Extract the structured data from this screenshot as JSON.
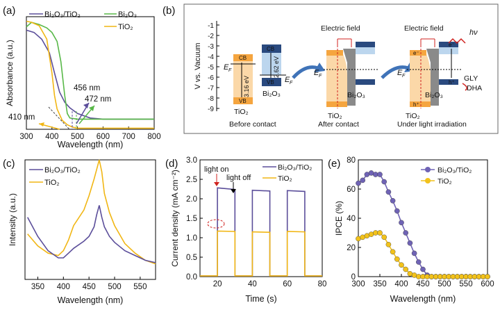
{
  "colors": {
    "purple": "#5b4e9a",
    "green": "#58b848",
    "yellow": "#f1b614",
    "orange": "#f5a53f",
    "orangeLight": "#fbd8a8",
    "navy": "#2a4a7f",
    "blueLight": "#bcd6ee",
    "gray": "#7a7a7a",
    "red": "#d0221f",
    "arrow": "#3f73b8"
  },
  "panel_labels": {
    "a": "(a)",
    "b": "(b)",
    "c": "(c)",
    "d": "(d)",
    "e": "(e)"
  },
  "chart_data": [
    {
      "id": "a",
      "type": "line",
      "title": "",
      "xlabel": "Wavelength (nm)",
      "ylabel": "Absorbance (a.u.)",
      "xlim": [
        300,
        800
      ],
      "xticks": [
        300,
        400,
        500,
        600,
        700,
        800
      ],
      "ylim": [
        0,
        1
      ],
      "legend": [
        "Bi₂O₃/TiO₂",
        "Bi₂O₃",
        "TiO₂"
      ],
      "series": [
        {
          "name": "Bi₂O₃/TiO₂",
          "color": "#5b4e9a",
          "x": [
            300,
            330,
            360,
            390,
            410,
            430,
            450,
            470,
            500,
            550,
            600,
            650,
            700,
            750,
            800
          ],
          "y": [
            0.88,
            0.86,
            0.8,
            0.68,
            0.5,
            0.33,
            0.24,
            0.19,
            0.14,
            0.1,
            0.09,
            0.09,
            0.09,
            0.09,
            0.09
          ]
        },
        {
          "name": "Bi₂O₃",
          "color": "#58b848",
          "x": [
            300,
            320,
            350,
            380,
            400,
            420,
            435,
            450,
            460,
            470,
            500,
            600,
            700,
            800
          ],
          "y": [
            0.91,
            0.95,
            0.93,
            0.9,
            0.86,
            0.78,
            0.6,
            0.3,
            0.14,
            0.1,
            0.09,
            0.09,
            0.09,
            0.09
          ]
        },
        {
          "name": "TiO₂",
          "color": "#f1b614",
          "x": [
            300,
            320,
            350,
            380,
            400,
            410,
            420,
            440,
            460,
            480,
            500,
            600,
            700,
            800
          ],
          "y": [
            0.96,
            0.95,
            0.92,
            0.8,
            0.5,
            0.3,
            0.18,
            0.08,
            0.04,
            0.02,
            0.01,
            0.01,
            0.01,
            0.01
          ]
        }
      ],
      "annotations": [
        "410 nm",
        "456 nm",
        "472 nm"
      ]
    },
    {
      "id": "c",
      "type": "line",
      "title": "",
      "xlabel": "Wavelength (nm)",
      "ylabel": "Intensity (a.u.)",
      "xlim": [
        325,
        580
      ],
      "xticks": [
        350,
        400,
        450,
        500,
        550
      ],
      "ylim": [
        0,
        1
      ],
      "legend": [
        "Bi₂O₃/TiO₂",
        "TiO₂"
      ],
      "series": [
        {
          "name": "TiO₂",
          "color": "#f1b614",
          "x": [
            330,
            350,
            370,
            390,
            400,
            410,
            420,
            440,
            450,
            460,
            465,
            470,
            475,
            480,
            490,
            500,
            520,
            540,
            560,
            580
          ],
          "y": [
            0.38,
            0.28,
            0.22,
            0.2,
            0.24,
            0.33,
            0.45,
            0.58,
            0.7,
            0.84,
            0.92,
            1.0,
            0.9,
            0.72,
            0.56,
            0.45,
            0.3,
            0.22,
            0.16,
            0.13
          ]
        },
        {
          "name": "Bi₂O₃/TiO₂",
          "color": "#5b4e9a",
          "x": [
            330,
            350,
            370,
            390,
            400,
            410,
            420,
            440,
            450,
            460,
            465,
            470,
            475,
            480,
            490,
            500,
            520,
            540,
            560,
            580
          ],
          "y": [
            0.52,
            0.36,
            0.24,
            0.18,
            0.18,
            0.22,
            0.26,
            0.32,
            0.36,
            0.44,
            0.54,
            0.62,
            0.52,
            0.44,
            0.36,
            0.31,
            0.24,
            0.2,
            0.16,
            0.14
          ]
        }
      ]
    },
    {
      "id": "d",
      "type": "line",
      "title": "",
      "xlabel": "Time (s)",
      "ylabel": "Current density (mA cm⁻²)",
      "xlim": [
        10,
        80
      ],
      "xticks": [
        20,
        40,
        60,
        80
      ],
      "ylim": [
        0,
        3.0
      ],
      "yticks": [
        0.0,
        0.5,
        1.0,
        1.5,
        2.0,
        2.5,
        3.0
      ],
      "legend": [
        "Bi₂O₃/TiO₂",
        "TiO₂"
      ],
      "series": [
        {
          "name": "Bi₂O₃/TiO₂",
          "color": "#5b4e9a",
          "x": [
            10,
            20,
            20,
            30,
            30,
            40,
            40,
            50,
            50,
            60,
            60,
            70,
            70,
            80
          ],
          "y": [
            0.02,
            0.02,
            2.28,
            2.24,
            0.02,
            0.02,
            2.22,
            2.2,
            0.02,
            0.02,
            2.21,
            2.19,
            0.02,
            0.02
          ]
        },
        {
          "name": "TiO₂",
          "color": "#f1b614",
          "x": [
            10,
            20,
            20,
            30,
            30,
            40,
            40,
            50,
            50,
            60,
            60,
            70,
            70,
            80
          ],
          "y": [
            0.02,
            0.02,
            1.17,
            1.16,
            0.02,
            0.02,
            1.15,
            1.14,
            0.02,
            0.02,
            1.16,
            1.15,
            0.02,
            0.02
          ]
        }
      ],
      "annotations": [
        "light on",
        "light off"
      ]
    },
    {
      "id": "e",
      "type": "scatter",
      "title": "",
      "xlabel": "Wavelength (nm)",
      "ylabel": "IPCE (%)",
      "xlim": [
        300,
        600
      ],
      "xticks": [
        300,
        350,
        400,
        450,
        500,
        550,
        600
      ],
      "ylim": [
        0,
        80
      ],
      "yticks": [
        0,
        20,
        40,
        60,
        80
      ],
      "legend": [
        "Bi₂O₃/TiO₂",
        "TiO₂"
      ],
      "series": [
        {
          "name": "Bi₂O₃/TiO₂",
          "color": "#6f63b5",
          "x": [
            300,
            310,
            320,
            330,
            340,
            350,
            360,
            370,
            380,
            390,
            400,
            410,
            420,
            430,
            440,
            450,
            460,
            470,
            480,
            490,
            500,
            510,
            520,
            530,
            540,
            550,
            560,
            570,
            580,
            590,
            600
          ],
          "y": [
            64,
            66,
            70,
            71,
            70,
            70,
            65,
            58,
            52,
            45,
            37,
            30,
            23,
            16,
            10,
            5,
            1,
            0,
            0,
            0,
            0,
            0,
            0,
            0,
            0,
            0,
            0,
            0,
            0,
            0,
            0
          ]
        },
        {
          "name": "TiO₂",
          "color": "#f2c21b",
          "x": [
            300,
            310,
            320,
            330,
            340,
            350,
            360,
            370,
            380,
            390,
            400,
            410,
            420,
            430,
            440,
            450,
            460,
            470,
            480,
            490,
            500,
            510,
            520,
            530,
            540,
            550,
            560,
            570,
            580,
            590,
            600
          ],
          "y": [
            26,
            27,
            28,
            29,
            30,
            30,
            27,
            22,
            17,
            12,
            8,
            5,
            2,
            1,
            0,
            0,
            0,
            0,
            0,
            0,
            0,
            0,
            0,
            0,
            0,
            0,
            0,
            0,
            0,
            0,
            0
          ]
        }
      ]
    }
  ],
  "diagram_b": {
    "ylabel": "V vs. Vacuum",
    "yticks": [
      "-1",
      "-2",
      "-3",
      "-4",
      "-5",
      "-6",
      "-7",
      "-8",
      "-9"
    ],
    "before": {
      "cb": "CB",
      "vb": "VB",
      "cb2": "CB",
      "vb2": "VB",
      "gap1": "3.16 eV",
      "gap2": "2.62 eV",
      "ef": "E",
      "ef_sub": "F",
      "tio2": "TiO₂",
      "bi2o3": "Bi₂O₃",
      "caption": "Before contact"
    },
    "after": {
      "field": "Electric field",
      "ef": "E",
      "ef_sub": "F",
      "tio2": "TiO₂",
      "bi2o3": "Bi₂O₃",
      "caption": "After contact"
    },
    "light": {
      "field": "Electric field",
      "hv": "hν",
      "electron": "e⁻",
      "hole": "h⁺",
      "e_tio2": "e⁻",
      "h_tio2": "h⁺",
      "gly": "GLY",
      "dha": "DHA",
      "ef": "E",
      "ef_sub": "F",
      "tio2": "TiO₂",
      "bi2o3": "Bi₂O₃",
      "caption": "Under light irradiation"
    }
  }
}
